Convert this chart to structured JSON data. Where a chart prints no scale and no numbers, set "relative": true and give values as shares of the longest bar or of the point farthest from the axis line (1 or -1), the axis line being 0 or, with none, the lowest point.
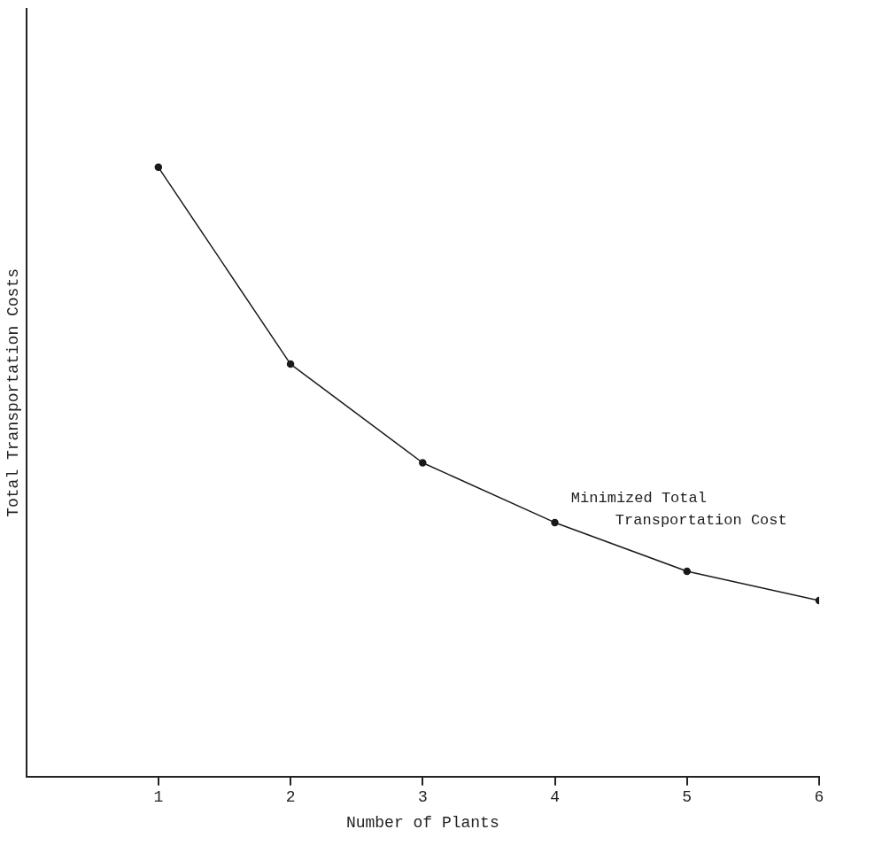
{
  "chart_data": {
    "type": "line",
    "relative": true,
    "xlabel": "Number of Plants",
    "ylabel": "Total Transportation Costs",
    "x": [
      1,
      2,
      3,
      4,
      5,
      6
    ],
    "series": [
      {
        "color": "#1a1a1a",
        "values": [
          1,
          0.677,
          0.515,
          0.417,
          0.337,
          0.289
        ]
      }
    ],
    "xlim": [
      0,
      6
    ],
    "xticks": [
      1,
      2,
      3,
      4,
      5,
      6
    ],
    "annotations": [
      "Minimized Total Transportation Cost"
    ],
    "marker": "circle",
    "line_style": "solid",
    "grid": false,
    "legend": false
  }
}
